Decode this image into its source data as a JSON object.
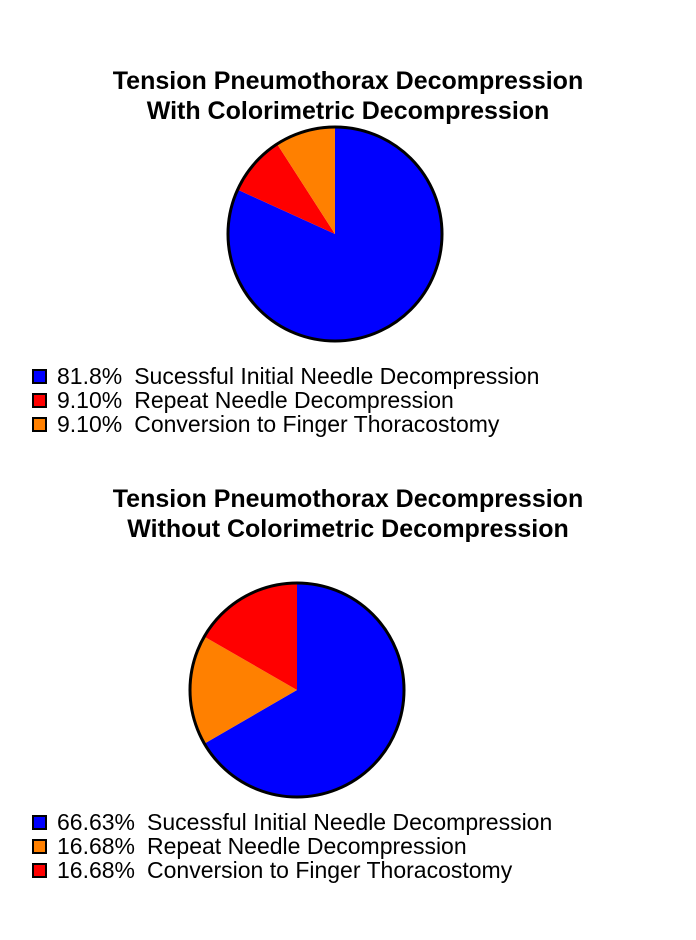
{
  "chart_data": [
    {
      "type": "pie",
      "title": "Tension Pneumothorax Decompression With Colorimetric Decompression",
      "title_lines": [
        "Tension Pneumothorax Decompression",
        "With Colorimetric Decompression"
      ],
      "labels": [
        "Sucessful Initial Needle Decompression",
        "Repeat Needle Decompression",
        "Conversion to Finger Thoracostomy"
      ],
      "values": [
        81.8,
        9.1,
        9.1
      ],
      "value_labels": [
        "81.8%",
        "9.10%",
        "9.10%"
      ],
      "colors": [
        "#0000ff",
        "#ff0000",
        "#ff8000"
      ],
      "legend_position": "bottom-left",
      "slice_order_clockwise_from_top": [
        "Sucessful Initial Needle Decompression",
        "Repeat Needle Decompression",
        "Conversion to Finger Thoracostomy"
      ]
    },
    {
      "type": "pie",
      "title": "Tension Pneumothorax Decompression Without Colorimetric Decompression",
      "title_lines": [
        "Tension Pneumothorax Decompression",
        "Without Colorimetric Decompression"
      ],
      "labels": [
        "Sucessful Initial Needle Decompression",
        "Repeat Needle Decompression",
        "Conversion to Finger Thoracostomy"
      ],
      "values": [
        66.63,
        16.68,
        16.68
      ],
      "value_labels": [
        "66.63%",
        "16.68%",
        "16.68%"
      ],
      "colors": [
        "#0000ff",
        "#ff8000",
        "#ff0000"
      ],
      "legend_position": "bottom-left",
      "slice_order_clockwise_from_top": [
        "Sucessful Initial Needle Decompression",
        "Repeat Needle Decompression",
        "Conversion to Finger Thoracostomy"
      ]
    }
  ],
  "charts": [
    {
      "title_line1": "Tension Pneumothorax Decompression",
      "title_line2": "With Colorimetric Decompression",
      "legend": [
        {
          "pct": "81.8%",
          "label": "Sucessful Initial Needle Decompression",
          "color": "#0000ff"
        },
        {
          "pct": "9.10%",
          "label": "Repeat Needle Decompression",
          "color": "#ff0000"
        },
        {
          "pct": "9.10%",
          "label": "Conversion to Finger Thoracostomy",
          "color": "#ff8000"
        }
      ]
    },
    {
      "title_line1": "Tension Pneumothorax Decompression",
      "title_line2": "Without Colorimetric Decompression",
      "legend": [
        {
          "pct": "66.63%",
          "label": "Sucessful Initial Needle Decompression",
          "color": "#0000ff"
        },
        {
          "pct": "16.68%",
          "label": "Repeat Needle Decompression",
          "color": "#ff8000"
        },
        {
          "pct": "16.68%",
          "label": "Conversion to Finger Thoracostomy",
          "color": "#ff0000"
        }
      ]
    }
  ]
}
